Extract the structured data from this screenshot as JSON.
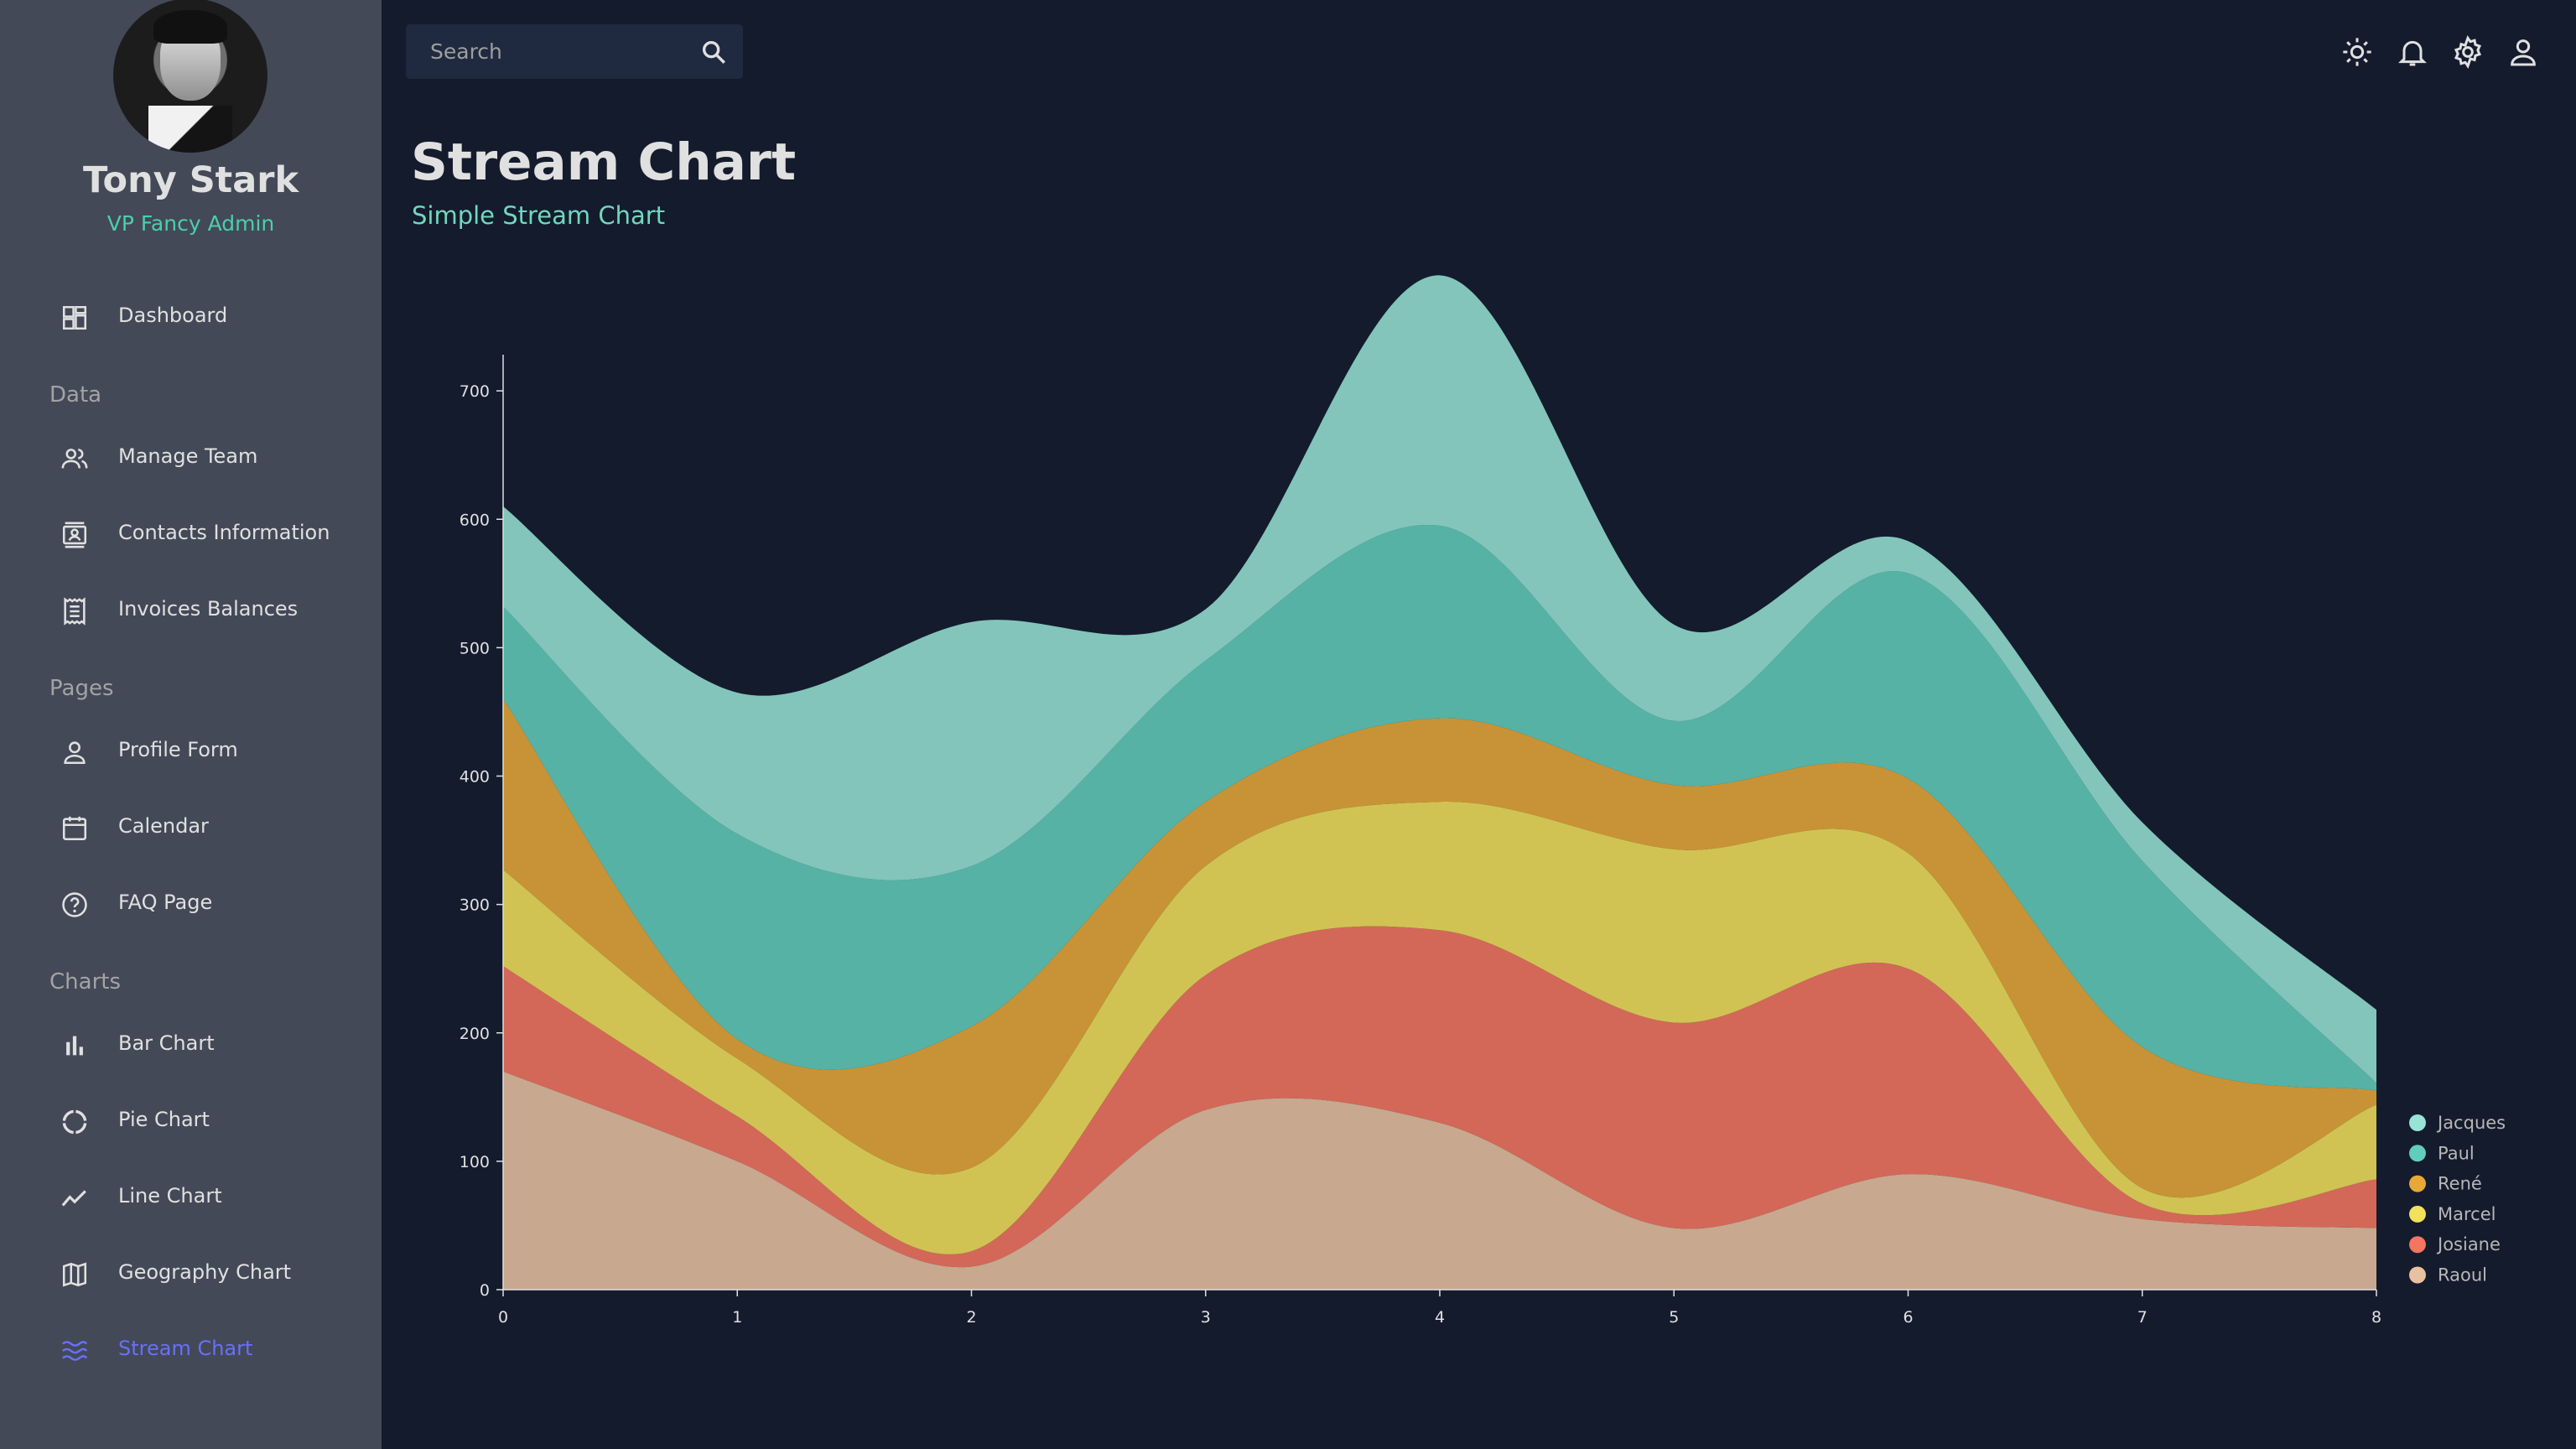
{
  "user": {
    "name": "Tony Stark",
    "role": "VP Fancy Admin"
  },
  "sidebar": {
    "items": [
      {
        "label": "Dashboard",
        "icon": "dashboard-icon"
      },
      {
        "label": "Manage Team",
        "icon": "people-icon"
      },
      {
        "label": "Contacts Information",
        "icon": "contacts-icon"
      },
      {
        "label": "Invoices Balances",
        "icon": "receipt-icon"
      },
      {
        "label": "Profile Form",
        "icon": "person-icon"
      },
      {
        "label": "Calendar",
        "icon": "calendar-icon"
      },
      {
        "label": "FAQ Page",
        "icon": "help-icon"
      },
      {
        "label": "Bar Chart",
        "icon": "bar-chart-icon"
      },
      {
        "label": "Pie Chart",
        "icon": "pie-chart-icon"
      },
      {
        "label": "Line Chart",
        "icon": "line-chart-icon"
      },
      {
        "label": "Geography Chart",
        "icon": "map-icon"
      },
      {
        "label": "Stream Chart",
        "icon": "waves-icon"
      }
    ],
    "sections": [
      "Data",
      "Pages",
      "Charts"
    ],
    "active_item": "Stream Chart"
  },
  "search": {
    "placeholder": "Search"
  },
  "topbar": {
    "icons": [
      "light-mode-icon",
      "notifications-icon",
      "settings-icon",
      "person-icon"
    ]
  },
  "header": {
    "title": "Stream Chart",
    "subtitle": "Simple Stream Chart"
  },
  "colors": {
    "background": "#141b2d",
    "sidebar": "#434957",
    "accent_green": "#4cceac",
    "active": "#6870fa"
  },
  "chart_data": {
    "type": "area",
    "x": [
      0,
      1,
      2,
      3,
      4,
      5,
      6,
      7,
      8
    ],
    "ylim": [
      0,
      800
    ],
    "y_ticks": [
      0,
      100,
      200,
      300,
      400,
      500,
      600,
      700
    ],
    "x_ticks": [
      0,
      1,
      2,
      3,
      4,
      5,
      6,
      7,
      8
    ],
    "legend_position": "bottom-right",
    "grid": false,
    "series": [
      {
        "name": "Raoul",
        "color": "#e8c1a0",
        "values": [
          170,
          100,
          18,
          140,
          130,
          48,
          90,
          55,
          48
        ]
      },
      {
        "name": "Josiane",
        "color": "#f47560",
        "values": [
          82,
          35,
          12,
          105,
          150,
          160,
          160,
          12,
          38
        ]
      },
      {
        "name": "Marcel",
        "color": "#f1e15b",
        "values": [
          75,
          45,
          65,
          85,
          100,
          135,
          90,
          12,
          58
        ]
      },
      {
        "name": "René",
        "color": "#e8a838",
        "values": [
          133,
          15,
          110,
          50,
          65,
          50,
          58,
          110,
          11
        ]
      },
      {
        "name": "Paul",
        "color": "#61cdbb",
        "values": [
          72,
          160,
          125,
          110,
          150,
          50,
          160,
          145,
          6
        ]
      },
      {
        "name": "Jacques",
        "color": "#97e3d5",
        "values": [
          78,
          110,
          190,
          40,
          195,
          75,
          25,
          30,
          57
        ]
      }
    ]
  }
}
